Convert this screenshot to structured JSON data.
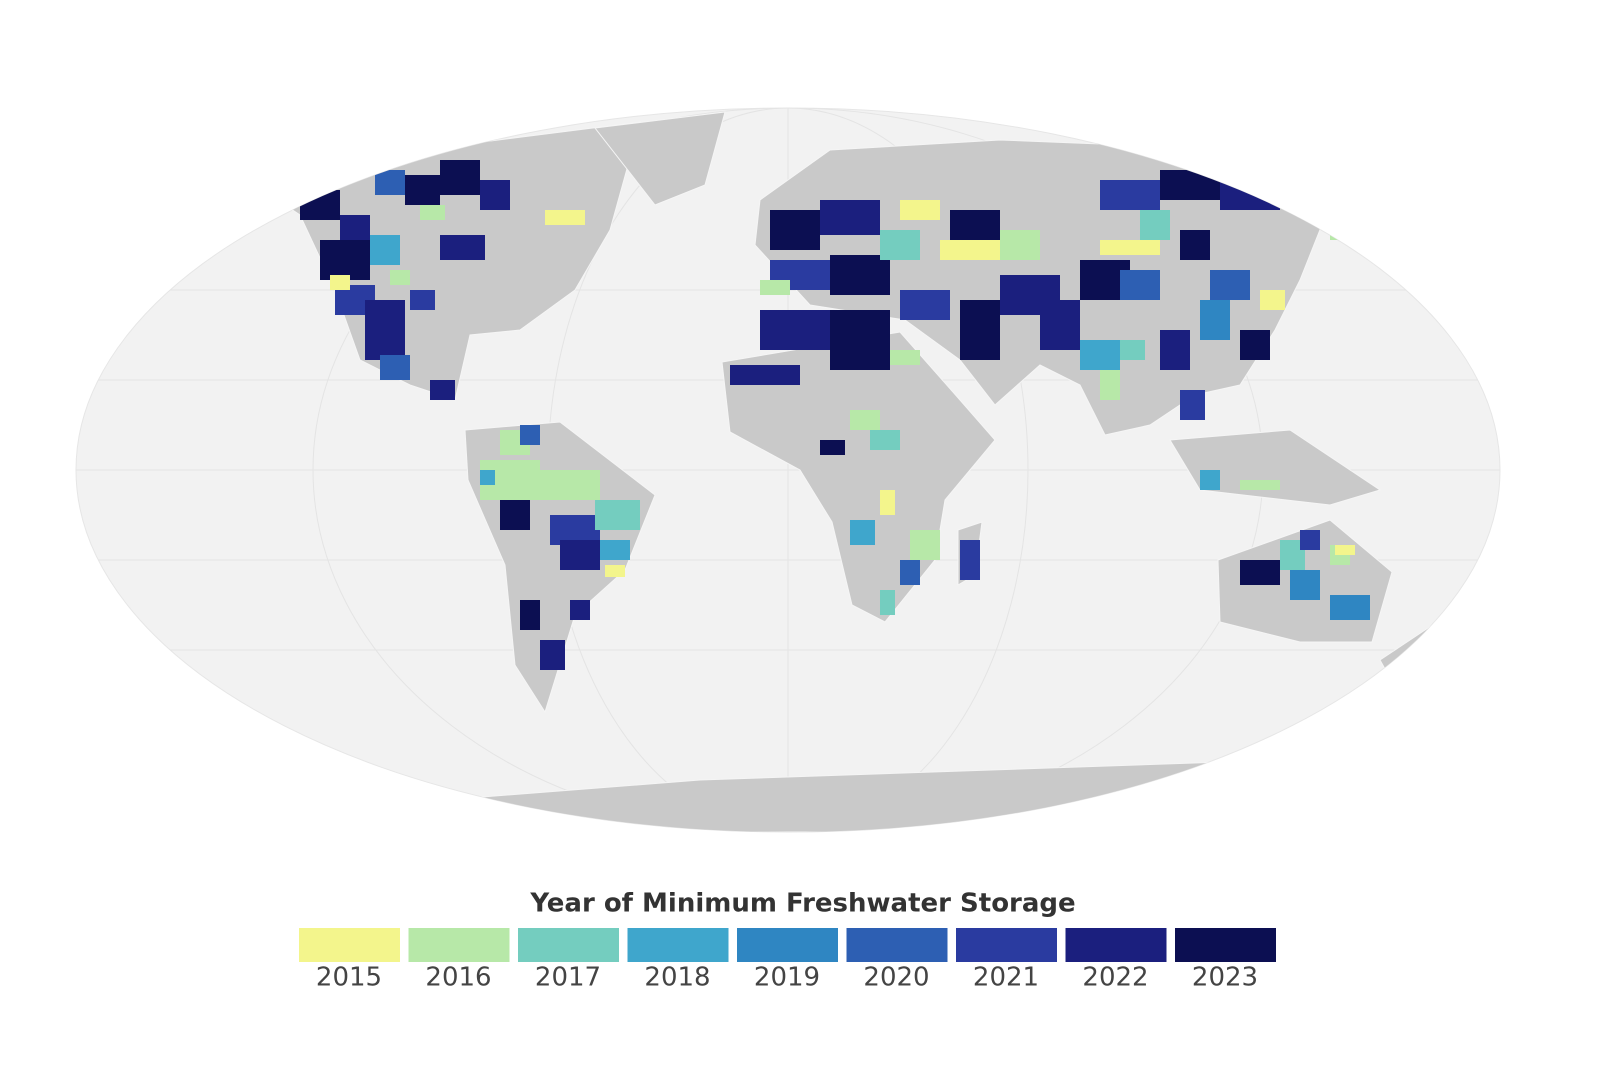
{
  "legend": {
    "title": "Year of Minimum Freshwater Storage",
    "items": [
      {
        "label": "2015",
        "color": "#f3f58c"
      },
      {
        "label": "2016",
        "color": "#b7e8a8"
      },
      {
        "label": "2017",
        "color": "#74cdbf"
      },
      {
        "label": "2018",
        "color": "#3fa6cc"
      },
      {
        "label": "2019",
        "color": "#2f86c2"
      },
      {
        "label": "2020",
        "color": "#2d5fb3"
      },
      {
        "label": "2021",
        "color": "#2a3ba0"
      },
      {
        "label": "2022",
        "color": "#1b1f7e"
      },
      {
        "label": "2023",
        "color": "#0c0f52"
      }
    ]
  }
}
